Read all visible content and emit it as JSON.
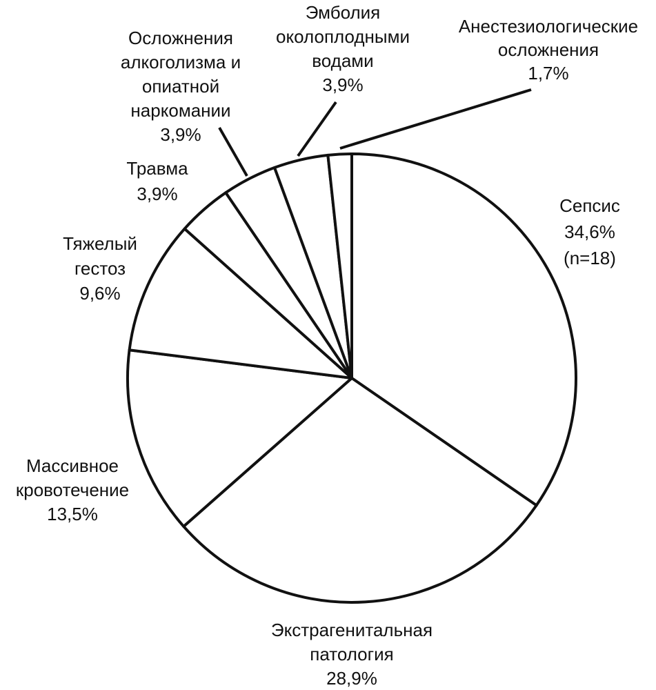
{
  "chart_data": {
    "type": "pie",
    "categories": [
      "Сепсис",
      "Экстрагенитальная\nпатология",
      "Массивное\nкровотечение",
      "Тяжелый\nгестоз",
      "Травма",
      "Осложнения\nалкоголизма и\nопиатной\nнаркомании",
      "Эмболия\nоколоплодными\nводами",
      "Анестезиологические\nосложнения"
    ],
    "values": [
      34.6,
      28.9,
      13.5,
      9.6,
      3.9,
      3.9,
      3.9,
      1.7
    ],
    "value_labels": [
      "34,6%",
      "28,9%",
      "13,5%",
      "9,6%",
      "3,9%",
      "3,9%",
      "3,9%",
      "1,7%"
    ],
    "annotations": [
      "(n=18)"
    ],
    "color": "#ffffff"
  }
}
